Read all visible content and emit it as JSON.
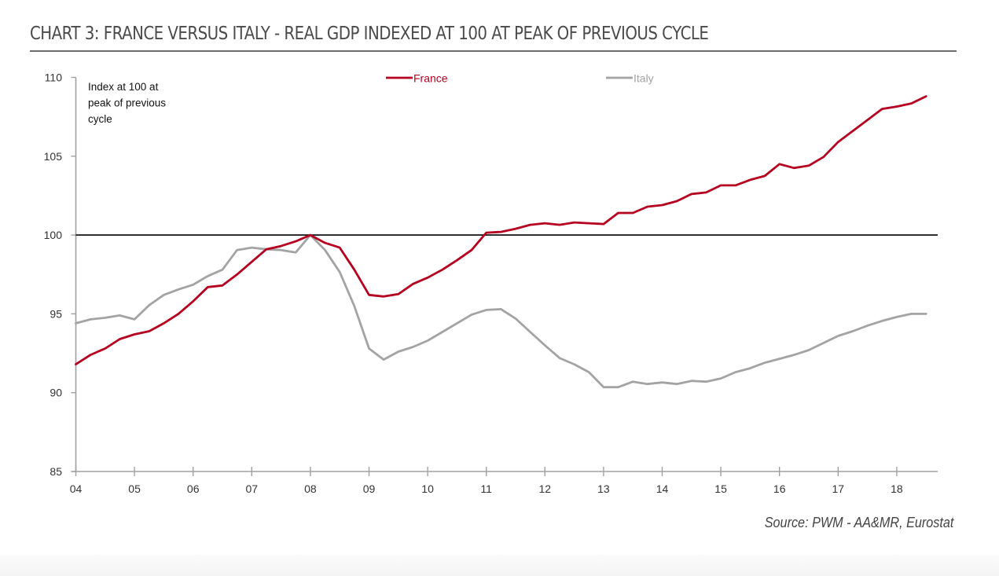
{
  "page": {
    "title": "CHART 3: FRANCE VERSUS ITALY - REAL GDP INDEXED AT 100 AT PEAK OF PREVIOUS CYCLE",
    "source": "Source: PWM - AA&MR, Eurostat"
  },
  "chart_data": {
    "type": "line",
    "title": "CHART 3: FRANCE VERSUS ITALY - REAL GDP INDEXED AT 100 AT PEAK OF PREVIOUS CYCLE",
    "xlabel": "",
    "ylabel": "",
    "annotation": [
      "Index at 100 at",
      "peak of previous",
      "cycle"
    ],
    "x_frequency": "quarterly",
    "x_start": "2004Q1",
    "x_end": "2018Q3",
    "x_range_years": [
      2004,
      2018.75
    ],
    "x_tick_labels": [
      "04",
      "05",
      "06",
      "07",
      "08",
      "09",
      "10",
      "11",
      "12",
      "13",
      "14",
      "15",
      "16",
      "17",
      "18"
    ],
    "ylim": [
      85,
      110
    ],
    "y_ticks": [
      85,
      90,
      95,
      100,
      105,
      110
    ],
    "reference_line": 100,
    "grid": false,
    "legend_position": "top-center",
    "series": [
      {
        "name": "France",
        "color": "#b5001f",
        "values": [
          91.8,
          92.4,
          92.8,
          93.4,
          93.7,
          93.9,
          94.4,
          95.0,
          95.8,
          96.7,
          96.8,
          97.5,
          98.3,
          99.1,
          99.3,
          99.6,
          100.0,
          99.5,
          99.2,
          97.8,
          96.2,
          96.1,
          96.25,
          96.9,
          97.3,
          97.8,
          98.4,
          99.05,
          100.15,
          100.2,
          100.4,
          100.65,
          100.75,
          100.65,
          100.8,
          100.75,
          100.7,
          101.4,
          101.4,
          101.8,
          101.9,
          102.15,
          102.6,
          102.7,
          103.15,
          103.15,
          103.5,
          103.75,
          104.5,
          104.25,
          104.4,
          104.95,
          105.9,
          106.6,
          107.3,
          108.0,
          108.15,
          108.35,
          108.8
        ]
      },
      {
        "name": "Italy",
        "color": "#a3a3a3",
        "values": [
          94.4,
          94.65,
          94.75,
          94.9,
          94.65,
          95.55,
          96.2,
          96.55,
          96.85,
          97.4,
          97.8,
          99.05,
          99.2,
          99.1,
          99.05,
          98.9,
          100.0,
          99.05,
          97.65,
          95.5,
          92.8,
          92.1,
          92.6,
          92.9,
          93.3,
          93.85,
          94.4,
          94.95,
          95.25,
          95.3,
          94.7,
          93.85,
          93.0,
          92.2,
          91.8,
          91.3,
          90.35,
          90.35,
          90.7,
          90.55,
          90.65,
          90.55,
          90.75,
          90.7,
          90.9,
          91.3,
          91.55,
          91.9,
          92.15,
          92.4,
          92.7,
          93.15,
          93.6,
          93.9,
          94.25,
          94.55,
          94.8,
          95.0,
          95.0
        ]
      }
    ],
    "axis_color": "#a0a0a0",
    "reference_line_color": "#000000"
  }
}
